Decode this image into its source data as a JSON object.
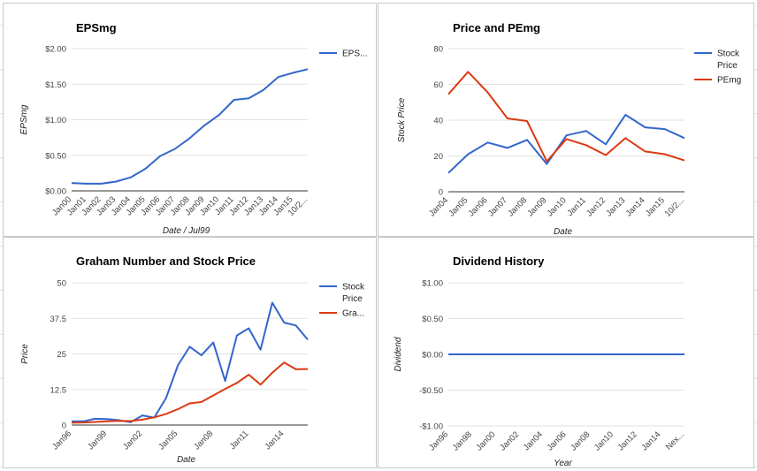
{
  "chart_data": [
    {
      "type": "line",
      "title": "EPSmg",
      "xlabel": "Date / Jul99",
      "ylabel": "EPSmg",
      "categories": [
        "Jan00",
        "Jan01",
        "Jan02",
        "Jan03",
        "Jan04",
        "Jan05",
        "Jan06",
        "Jan07",
        "Jan08",
        "Jan09",
        "Jan10",
        "Jan11",
        "Jan12",
        "Jan13",
        "Jan14",
        "Jan15",
        "10/2..."
      ],
      "yticks": [
        "$0.00",
        "$0.50",
        "$1.00",
        "$1.50",
        "$2.00"
      ],
      "ylim": [
        0,
        2
      ],
      "grid": true,
      "legend_position": "right",
      "series": [
        {
          "name": "EPS...",
          "color": "#3366cc",
          "values": [
            0.11,
            0.1,
            0.1,
            0.13,
            0.19,
            0.31,
            0.49,
            0.59,
            0.74,
            0.92,
            1.07,
            1.28,
            1.3,
            1.42,
            1.6,
            1.66,
            1.71
          ]
        }
      ]
    },
    {
      "type": "line",
      "title": "Price and PEmg",
      "xlabel": "Date",
      "ylabel": "Stock Price",
      "categories": [
        "Jan04",
        "Jan05",
        "Jan06",
        "Jan07",
        "Jan08",
        "Jan09",
        "Jan10",
        "Jan11",
        "Jan12",
        "Jan13",
        "Jan14",
        "Jan15",
        "10/2..."
      ],
      "yticks": [
        "0",
        "20",
        "40",
        "60",
        "80"
      ],
      "ylim": [
        0,
        80
      ],
      "grid": true,
      "legend_position": "right",
      "series": [
        {
          "name": "Stock Price",
          "color": "#3366cc",
          "values": [
            10.5,
            21,
            27.5,
            24.5,
            29,
            15.5,
            31.5,
            34,
            26.5,
            43,
            36,
            35,
            30
          ]
        },
        {
          "name": "PEmg",
          "color": "#dc3912",
          "values": [
            54.5,
            67,
            55.5,
            41,
            39.5,
            17,
            29.5,
            26,
            20.5,
            30,
            22.5,
            21,
            17.5
          ]
        }
      ]
    },
    {
      "type": "line",
      "title": "Graham Number and Stock Price",
      "xlabel": "Date",
      "ylabel": "Price",
      "categories": [
        "Jan96",
        "",
        "",
        "Jan99",
        "",
        "",
        "Jan02",
        "",
        "",
        "Jan05",
        "",
        "",
        "Jan08",
        "",
        "",
        "Jan11",
        "",
        "",
        "Jan14",
        "",
        ""
      ],
      "yticks": [
        "0",
        "12.5",
        "25",
        "37.5",
        "50"
      ],
      "ylim": [
        0,
        50
      ],
      "grid": true,
      "legend_position": "right",
      "series": [
        {
          "name": "Stock Price",
          "color": "#3366cc",
          "values": [
            1.3,
            1.3,
            2.2,
            2.1,
            1.7,
            1.0,
            3.4,
            2.6,
            9.5,
            21,
            27.5,
            24.5,
            29,
            15.5,
            31.5,
            34,
            26.5,
            43,
            36,
            35,
            30
          ]
        },
        {
          "name": "Gra...",
          "color": "#dc3912",
          "values": [
            0.8,
            0.9,
            1.1,
            1.3,
            1.5,
            1.4,
            1.9,
            2.7,
            3.9,
            5.6,
            7.6,
            8.1,
            10.4,
            12.7,
            14.8,
            17.7,
            14.2,
            18.4,
            22.0,
            19.6,
            19.7
          ]
        }
      ]
    },
    {
      "type": "line",
      "title": "Dividend History",
      "xlabel": "Year",
      "ylabel": "Dividend",
      "categories": [
        "Jan96",
        "Jan98",
        "Jan00",
        "Jan02",
        "Jan04",
        "Jan06",
        "Jan08",
        "Jan10",
        "Jan12",
        "Jan14",
        "Nex..."
      ],
      "yticks": [
        "-$1.00",
        "-$0.50",
        "$0.00",
        "$0.50",
        "$1.00"
      ],
      "ylim": [
        -1,
        1
      ],
      "grid": true,
      "legend_position": "none",
      "series": [
        {
          "name": "",
          "color": "#3366cc",
          "values": [
            0,
            0,
            0,
            0,
            0,
            0,
            0,
            0,
            0,
            0,
            0
          ]
        }
      ]
    }
  ]
}
